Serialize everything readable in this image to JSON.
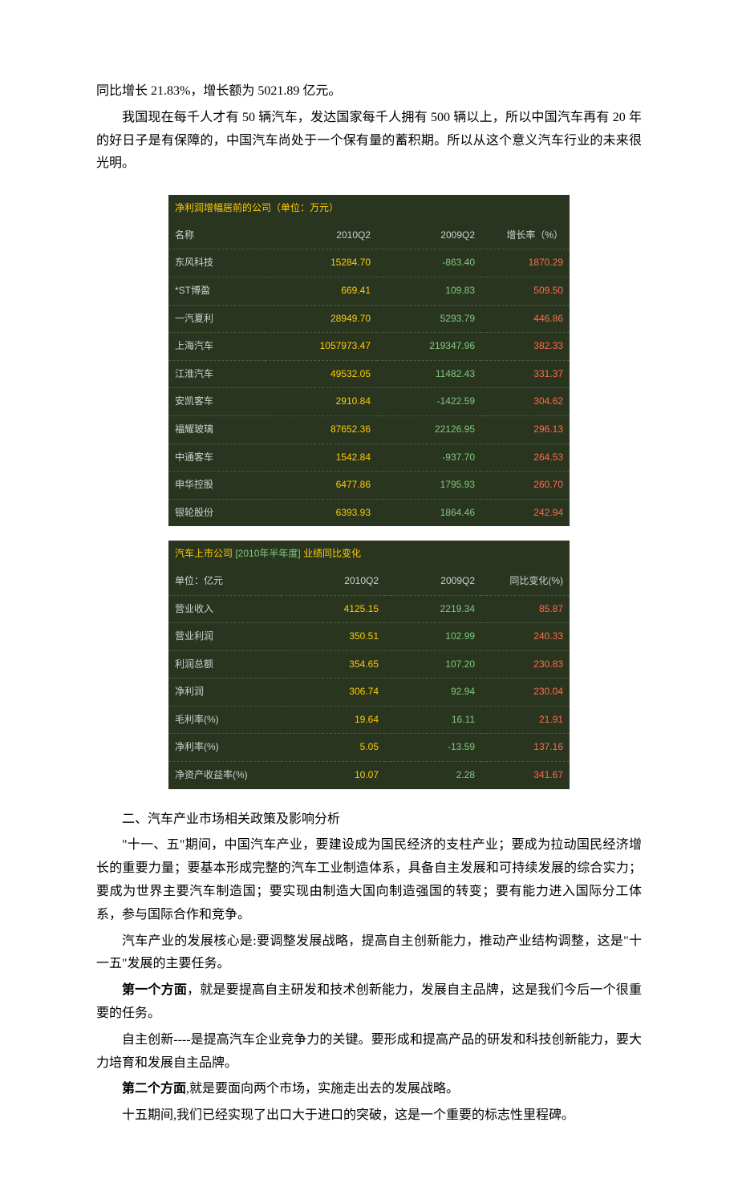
{
  "paragraphs": {
    "p1": "同比增长 21.83%，增长额为 5021.89 亿元。",
    "p2": "我国现在每千人才有 50 辆汽车，发达国家每千人拥有 500 辆以上，所以中国汽车再有 20 年的好日子是有保障的，中国汽车尚处于一个保有量的蓄积期。所以从这个意义汽车行业的未来很光明。",
    "section2_title": "二、汽车产业市场相关政策及影响分析",
    "p3": "\"十一、五\"期间，中国汽车产业，要建设成为国民经济的支柱产业；要成为拉动国民经济增长的重要力量；要基本形成完整的汽车工业制造体系，具备自主发展和可持续发展的综合实力；要成为世界主要汽车制造国；要实现由制造大国向制造强国的转变；要有能力进入国际分工体系，参与国际合作和竞争。",
    "p4": "汽车产业的发展核心是:要调整发展战略，提高自主创新能力，推动产业结构调整，这是\"十一五\"发展的主要任务。",
    "aspect1_label": "第一个方面",
    "aspect1_rest": "，就是要提高自主研发和技术创新能力，发展自主品牌，这是我们今后一个很重要的任务。",
    "p5": "自主创新----是提高汽车企业竞争力的关键。要形成和提高产品的研发和科技创新能力，要大力培育和发展自主品牌。",
    "aspect2_label": "第二个方面",
    "aspect2_rest": ",就是要面向两个市场，实施走出去的发展战略。",
    "p6": "十五期间,我们已经实现了出口大于进口的突破，这是一个重要的标志性里程碑。"
  },
  "table1": {
    "type": "table",
    "background_color": "#2a3520",
    "header_color": "#ffcc00",
    "col1_color": "#d0d0d0",
    "col2_color": "#ffcc00",
    "col3_color": "#7fc97f",
    "col4_color": "#ff6b4a",
    "border_color": "#4a5a3a",
    "font_size": 12,
    "title": "净利润增幅居前的公司（单位：万元）",
    "columns": [
      "名称",
      "2010Q2",
      "2009Q2",
      "增长率（%）"
    ],
    "col_widths": [
      "24%",
      "28%",
      "26%",
      "22%"
    ],
    "rows": [
      [
        "东风科技",
        "15284.70",
        "-863.40",
        "1870.29"
      ],
      [
        "*ST博盈",
        "669.41",
        "109.83",
        "509.50"
      ],
      [
        "一汽夏利",
        "28949.70",
        "5293.79",
        "446.86"
      ],
      [
        "上海汽车",
        "1057973.47",
        "219347.96",
        "382.33"
      ],
      [
        "江淮汽车",
        "49532.05",
        "11482.43",
        "331.37"
      ],
      [
        "安凯客车",
        "2910.84",
        "-1422.59",
        "304.62"
      ],
      [
        "福耀玻璃",
        "87652.36",
        "22126.95",
        "296.13"
      ],
      [
        "中通客车",
        "1542.84",
        "-937.70",
        "264.53"
      ],
      [
        "申华控股",
        "6477.86",
        "1795.93",
        "260.70"
      ],
      [
        "银轮股份",
        "6393.93",
        "1864.46",
        "242.94"
      ]
    ]
  },
  "table2": {
    "type": "table",
    "background_color": "#2a3520",
    "title_part1": "汽车上市公司 ",
    "title_part2": "[2010年半年度]",
    "title_part3": " 业绩同比变化",
    "columns": [
      "单位：亿元",
      "2010Q2",
      "2009Q2",
      "同比变化(%)"
    ],
    "col_widths": [
      "28%",
      "26%",
      "24%",
      "22%"
    ],
    "rows": [
      [
        "营业收入",
        "4125.15",
        "2219.34",
        "85.87"
      ],
      [
        "营业利润",
        "350.51",
        "102.99",
        "240.33"
      ],
      [
        "利润总额",
        "354.65",
        "107.20",
        "230.83"
      ],
      [
        "净利润",
        "306.74",
        "92.94",
        "230.04"
      ],
      [
        "毛利率(%)",
        "19.64",
        "16.11",
        "21.91"
      ],
      [
        "净利率(%)",
        "5.05",
        "-13.59",
        "137.16"
      ],
      [
        "净资产收益率(%)",
        "10.07",
        "2.28",
        "341.67"
      ]
    ]
  }
}
